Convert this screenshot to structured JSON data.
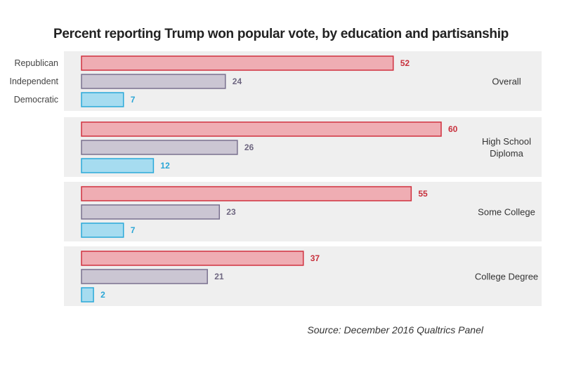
{
  "chart_data": {
    "type": "bar",
    "orientation": "horizontal",
    "title": "Percent reporting Trump won popular vote, by education and partisanship",
    "categories": [
      "Overall",
      "High School Diploma",
      "Some College",
      "College Degree"
    ],
    "series": [
      {
        "name": "Republican",
        "values": [
          52,
          60,
          55,
          37
        ],
        "color": "#d0313f",
        "fill": "#efadb3"
      },
      {
        "name": "Independent",
        "values": [
          24,
          26,
          23,
          21
        ],
        "color": "#7a718f",
        "fill": "#cbc6d3"
      },
      {
        "name": "Democratic",
        "values": [
          7,
          12,
          7,
          2
        ],
        "color": "#2aa9d9",
        "fill": "#a6dcf0"
      }
    ],
    "xlim": [
      0,
      60
    ],
    "grid": false,
    "legend": "left",
    "source": "Source: December 2016 Qualtrics Panel"
  }
}
